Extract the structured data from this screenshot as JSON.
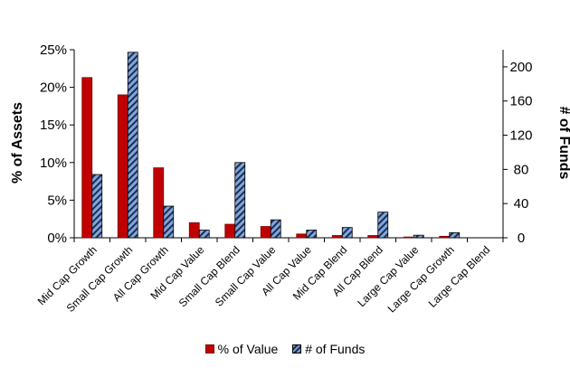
{
  "chart_data": {
    "type": "bar",
    "categories": [
      "Mid Cap Growth",
      "Small Cap Growth",
      "All Cap Growth",
      "Mid Cap Value",
      "Small Cap Blend",
      "Small Cap Value",
      "All Cap Value",
      "Mid Cap Blend",
      "All Cap Blend",
      "Large Cap Value",
      "Large Cap Growth",
      "Large Cap Blend"
    ],
    "series": [
      {
        "name": "% of Value",
        "axis": "left",
        "color": "#c00000",
        "values": [
          21.3,
          19.0,
          9.3,
          2.0,
          1.8,
          1.5,
          0.5,
          0.3,
          0.3,
          0.1,
          0.2,
          0.0
        ]
      },
      {
        "name": "# of Funds",
        "axis": "right",
        "color": "#7fa6de",
        "values": [
          74,
          217,
          37,
          9,
          88,
          21,
          9,
          12,
          30,
          3,
          6,
          0
        ]
      }
    ],
    "ylabel": "% of Assets",
    "y2label": "# of Funds",
    "ylim": [
      0,
      25
    ],
    "y2lim": [
      0,
      220
    ],
    "yticks": [
      "0%",
      "5%",
      "10%",
      "15%",
      "20%",
      "25%"
    ],
    "y2ticks": [
      "0",
      "40",
      "80",
      "120",
      "160",
      "200"
    ],
    "grid": false,
    "legend_position": "bottom"
  }
}
